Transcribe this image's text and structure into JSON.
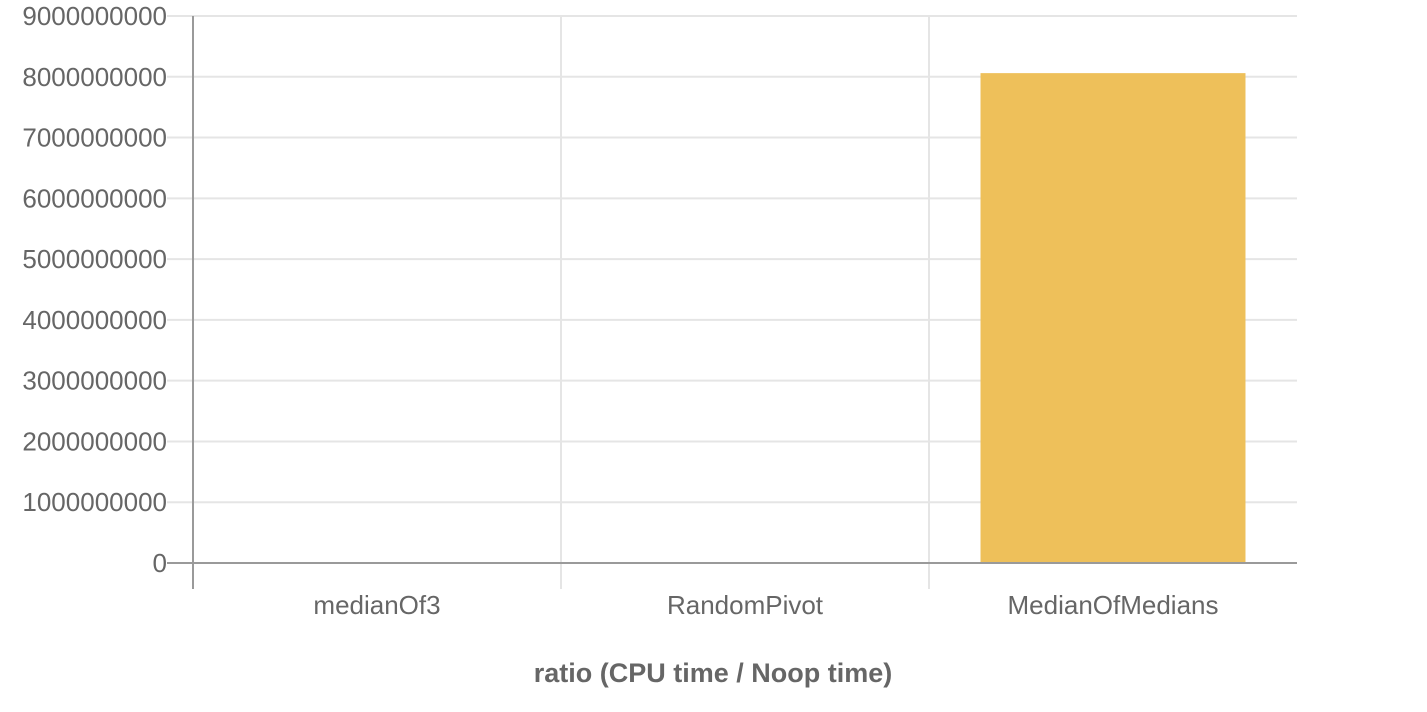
{
  "chart_data": {
    "type": "bar",
    "categories": [
      "medianOf3",
      "RandomPivot",
      "MedianOfMedians"
    ],
    "values": [
      0,
      0,
      8060000000
    ],
    "title": "",
    "xlabel": "ratio (CPU time / Noop time)",
    "ylabel": "",
    "ylim": [
      0,
      9000000000
    ],
    "yticks": [
      0,
      1000000000,
      2000000000,
      3000000000,
      4000000000,
      5000000000,
      6000000000,
      7000000000,
      8000000000,
      9000000000
    ],
    "ytick_labels": [
      "0",
      "1000000000",
      "2000000000",
      "3000000000",
      "4000000000",
      "5000000000",
      "6000000000",
      "7000000000",
      "8000000000",
      "9000000000"
    ],
    "grid": true,
    "legend": "none",
    "bar_color": "#eec05a",
    "grid_color": "#e5e5e5",
    "axis_color": "#9a9a9a",
    "text_color": "#666666"
  }
}
